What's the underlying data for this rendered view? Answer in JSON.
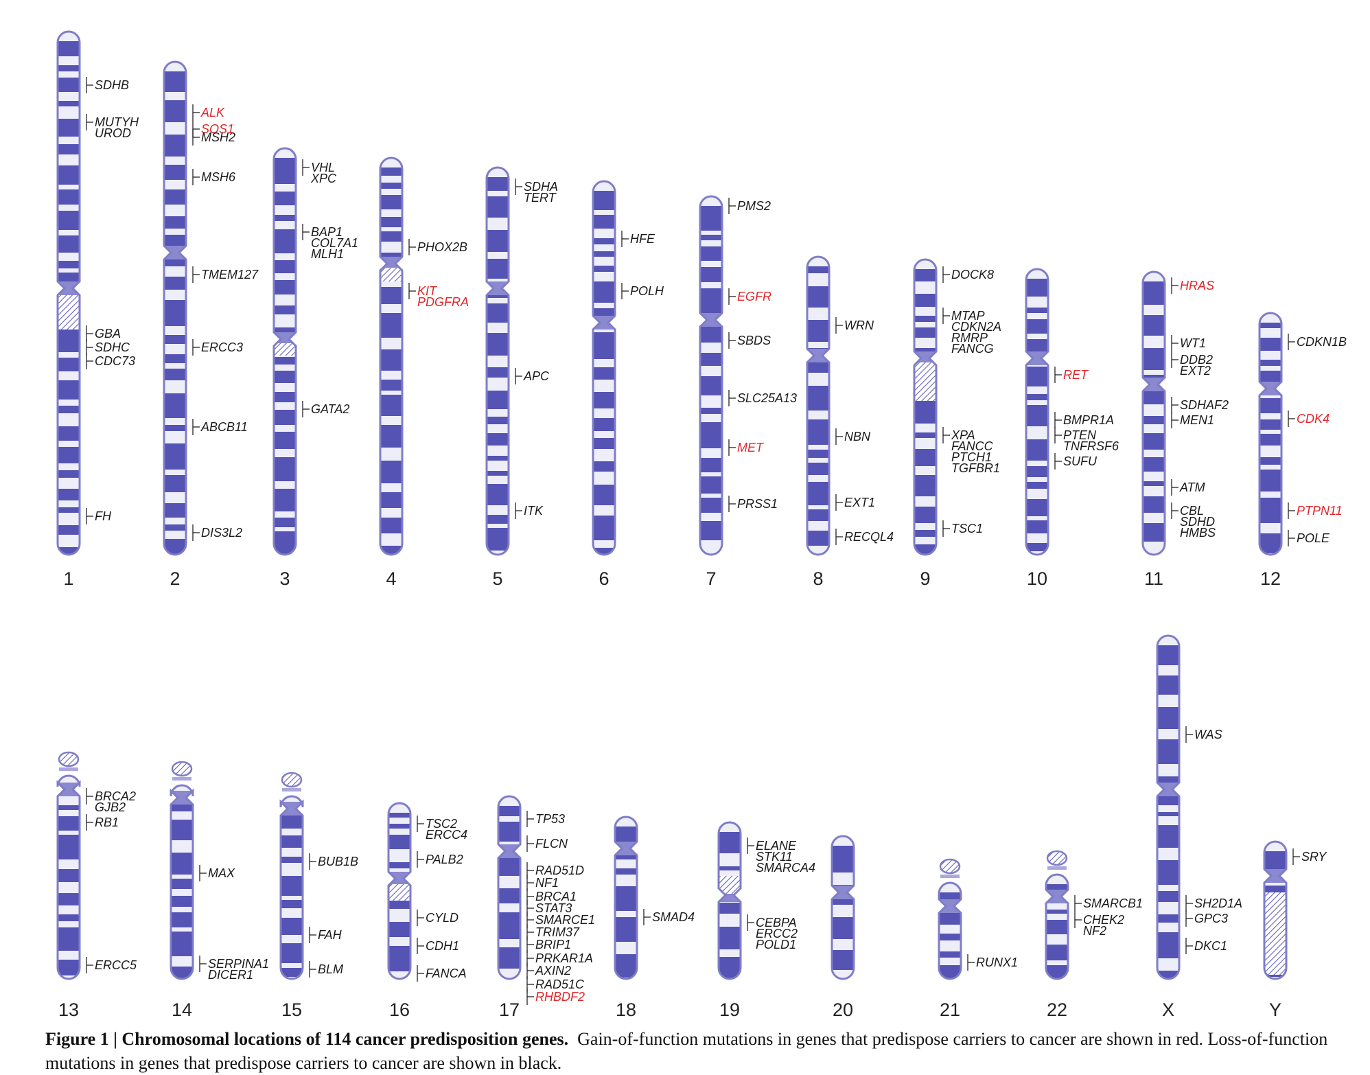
{
  "colors": {
    "band": "#5553b3",
    "outline": "#7f7dc7",
    "light_band": "#eeeef9",
    "gain": "#e0262b",
    "loss": "#1a1a1a"
  },
  "chromosomes": [
    {
      "id": "1",
      "genes": [
        {
          "labels": [
            "SDHB"
          ],
          "type": "loss"
        },
        {
          "labels": [
            "MUTYH",
            "UROD"
          ],
          "type": "loss"
        },
        {
          "labels": [
            "GBA"
          ],
          "type": "loss"
        },
        {
          "labels": [
            "SDHC"
          ],
          "type": "loss"
        },
        {
          "labels": [
            "CDC73"
          ],
          "type": "loss"
        },
        {
          "labels": [
            "FH"
          ],
          "type": "loss"
        }
      ]
    },
    {
      "id": "2",
      "genes": [
        {
          "labels": [
            "ALK"
          ],
          "type": "gain"
        },
        {
          "labels": [
            "SOS1"
          ],
          "type": "gain"
        },
        {
          "labels": [
            "MSH2"
          ],
          "type": "loss"
        },
        {
          "labels": [
            "MSH6"
          ],
          "type": "loss"
        },
        {
          "labels": [
            "TMEM127"
          ],
          "type": "loss"
        },
        {
          "labels": [
            "ERCC3"
          ],
          "type": "loss"
        },
        {
          "labels": [
            "ABCB11"
          ],
          "type": "loss"
        },
        {
          "labels": [
            "DIS3L2"
          ],
          "type": "loss"
        }
      ]
    },
    {
      "id": "3",
      "genes": [
        {
          "labels": [
            "VHL",
            "XPC"
          ],
          "type": "loss"
        },
        {
          "labels": [
            "BAP1",
            "COL7A1",
            "MLH1"
          ],
          "type": "loss"
        },
        {
          "labels": [
            "GATA2"
          ],
          "type": "loss"
        }
      ]
    },
    {
      "id": "4",
      "genes": [
        {
          "labels": [
            "PHOX2B"
          ],
          "type": "loss"
        },
        {
          "labels": [
            "KIT",
            "PDGFRA"
          ],
          "type": "gain"
        }
      ]
    },
    {
      "id": "5",
      "genes": [
        {
          "labels": [
            "SDHA",
            "TERT"
          ],
          "type": "loss"
        },
        {
          "labels": [
            "APC"
          ],
          "type": "loss"
        },
        {
          "labels": [
            "ITK"
          ],
          "type": "loss"
        }
      ]
    },
    {
      "id": "6",
      "genes": [
        {
          "labels": [
            "HFE"
          ],
          "type": "loss"
        },
        {
          "labels": [
            "POLH"
          ],
          "type": "loss"
        }
      ]
    },
    {
      "id": "7",
      "genes": [
        {
          "labels": [
            "PMS2"
          ],
          "type": "loss"
        },
        {
          "labels": [
            "EGFR"
          ],
          "type": "gain"
        },
        {
          "labels": [
            "SBDS"
          ],
          "type": "loss"
        },
        {
          "labels": [
            "SLC25A13"
          ],
          "type": "loss"
        },
        {
          "labels": [
            "MET"
          ],
          "type": "gain"
        },
        {
          "labels": [
            "PRSS1"
          ],
          "type": "loss"
        }
      ]
    },
    {
      "id": "8",
      "genes": [
        {
          "labels": [
            "WRN"
          ],
          "type": "loss"
        },
        {
          "labels": [
            "NBN"
          ],
          "type": "loss"
        },
        {
          "labels": [
            "EXT1"
          ],
          "type": "loss"
        },
        {
          "labels": [
            "RECQL4"
          ],
          "type": "loss"
        }
      ]
    },
    {
      "id": "9",
      "genes": [
        {
          "labels": [
            "DOCK8"
          ],
          "type": "loss"
        },
        {
          "labels": [
            "MTAP",
            "CDKN2A",
            "RMRP",
            "FANCG"
          ],
          "type": "loss"
        },
        {
          "labels": [
            "XPA",
            "FANCC",
            "PTCH1",
            "TGFBR1"
          ],
          "type": "loss"
        },
        {
          "labels": [
            "TSC1"
          ],
          "type": "loss"
        }
      ]
    },
    {
      "id": "10",
      "genes": [
        {
          "labels": [
            "RET"
          ],
          "type": "gain"
        },
        {
          "labels": [
            "BMPR1A"
          ],
          "type": "loss"
        },
        {
          "labels": [
            "PTEN",
            "TNFRSF6"
          ],
          "type": "loss"
        },
        {
          "labels": [
            "SUFU"
          ],
          "type": "loss"
        }
      ]
    },
    {
      "id": "11",
      "genes": [
        {
          "labels": [
            "HRAS"
          ],
          "type": "gain"
        },
        {
          "labels": [
            "WT1"
          ],
          "type": "loss"
        },
        {
          "labels": [
            "DDB2",
            "EXT2"
          ],
          "type": "loss"
        },
        {
          "labels": [
            "SDHAF2"
          ],
          "type": "loss"
        },
        {
          "labels": [
            "MEN1"
          ],
          "type": "loss"
        },
        {
          "labels": [
            "ATM"
          ],
          "type": "loss"
        },
        {
          "labels": [
            "CBL",
            "SDHD",
            "HMBS"
          ],
          "type": "loss"
        }
      ]
    },
    {
      "id": "12",
      "genes": [
        {
          "labels": [
            "CDKN1B"
          ],
          "type": "loss"
        },
        {
          "labels": [
            "CDK4"
          ],
          "type": "gain"
        },
        {
          "labels": [
            "PTPN11"
          ],
          "type": "gain"
        },
        {
          "labels": [
            "POLE"
          ],
          "type": "loss"
        }
      ]
    },
    {
      "id": "13",
      "genes": [
        {
          "labels": [
            "BRCA2",
            "GJB2"
          ],
          "type": "loss"
        },
        {
          "labels": [
            "RB1"
          ],
          "type": "loss"
        },
        {
          "labels": [
            "ERCC5"
          ],
          "type": "loss"
        }
      ]
    },
    {
      "id": "14",
      "genes": [
        {
          "labels": [
            "MAX"
          ],
          "type": "loss"
        },
        {
          "labels": [
            "SERPINA1",
            "DICER1"
          ],
          "type": "loss"
        }
      ]
    },
    {
      "id": "15",
      "genes": [
        {
          "labels": [
            "BUB1B"
          ],
          "type": "loss"
        },
        {
          "labels": [
            "FAH"
          ],
          "type": "loss"
        },
        {
          "labels": [
            "BLM"
          ],
          "type": "loss"
        }
      ]
    },
    {
      "id": "16",
      "genes": [
        {
          "labels": [
            "TSC2",
            "ERCC4"
          ],
          "type": "loss"
        },
        {
          "labels": [
            "PALB2"
          ],
          "type": "loss"
        },
        {
          "labels": [
            "CYLD"
          ],
          "type": "loss"
        },
        {
          "labels": [
            "CDH1"
          ],
          "type": "loss"
        },
        {
          "labels": [
            "FANCA"
          ],
          "type": "loss"
        }
      ]
    },
    {
      "id": "17",
      "genes": [
        {
          "labels": [
            "TP53"
          ],
          "type": "loss"
        },
        {
          "labels": [
            "FLCN"
          ],
          "type": "loss"
        },
        {
          "labels": [
            "RAD51D"
          ],
          "type": "loss"
        },
        {
          "labels": [
            "NF1"
          ],
          "type": "loss"
        },
        {
          "labels": [
            "BRCA1"
          ],
          "type": "loss"
        },
        {
          "labels": [
            "STAT3"
          ],
          "type": "loss"
        },
        {
          "labels": [
            "SMARCE1"
          ],
          "type": "loss"
        },
        {
          "labels": [
            "TRIM37"
          ],
          "type": "loss"
        },
        {
          "labels": [
            "BRIP1"
          ],
          "type": "loss"
        },
        {
          "labels": [
            "PRKAR1A"
          ],
          "type": "loss"
        },
        {
          "labels": [
            "AXIN2"
          ],
          "type": "loss"
        },
        {
          "labels": [
            "RAD51C"
          ],
          "type": "loss"
        },
        {
          "labels": [
            "RHBDF2"
          ],
          "type": "gain"
        }
      ]
    },
    {
      "id": "18",
      "genes": [
        {
          "labels": [
            "SMAD4"
          ],
          "type": "loss"
        }
      ]
    },
    {
      "id": "19",
      "genes": [
        {
          "labels": [
            "ELANE",
            "STK11",
            "SMARCA4"
          ],
          "type": "loss"
        },
        {
          "labels": [
            "CEBPA",
            "ERCC2",
            "POLD1"
          ],
          "type": "loss"
        }
      ]
    },
    {
      "id": "20",
      "genes": []
    },
    {
      "id": "21",
      "genes": [
        {
          "labels": [
            "RUNX1"
          ],
          "type": "loss"
        }
      ]
    },
    {
      "id": "22",
      "genes": [
        {
          "labels": [
            "SMARCB1"
          ],
          "type": "loss"
        },
        {
          "labels": [
            "CHEK2",
            "NF2"
          ],
          "type": "loss"
        }
      ]
    },
    {
      "id": "X",
      "genes": [
        {
          "labels": [
            "WAS"
          ],
          "type": "loss"
        },
        {
          "labels": [
            "SH2D1A"
          ],
          "type": "loss"
        },
        {
          "labels": [
            "GPC3"
          ],
          "type": "loss"
        },
        {
          "labels": [
            "DKC1"
          ],
          "type": "loss"
        }
      ]
    },
    {
      "id": "Y",
      "genes": [
        {
          "labels": [
            "SRY"
          ],
          "type": "loss"
        }
      ]
    }
  ],
  "caption": {
    "bold": "Figure 1 | Chromosomal locations of 114 cancer predisposition genes.",
    "text": "Gain-of-function mutations in genes that predispose carriers to cancer are shown in red. Loss-of-function mutations in genes that predispose carriers to cancer are shown in black."
  }
}
